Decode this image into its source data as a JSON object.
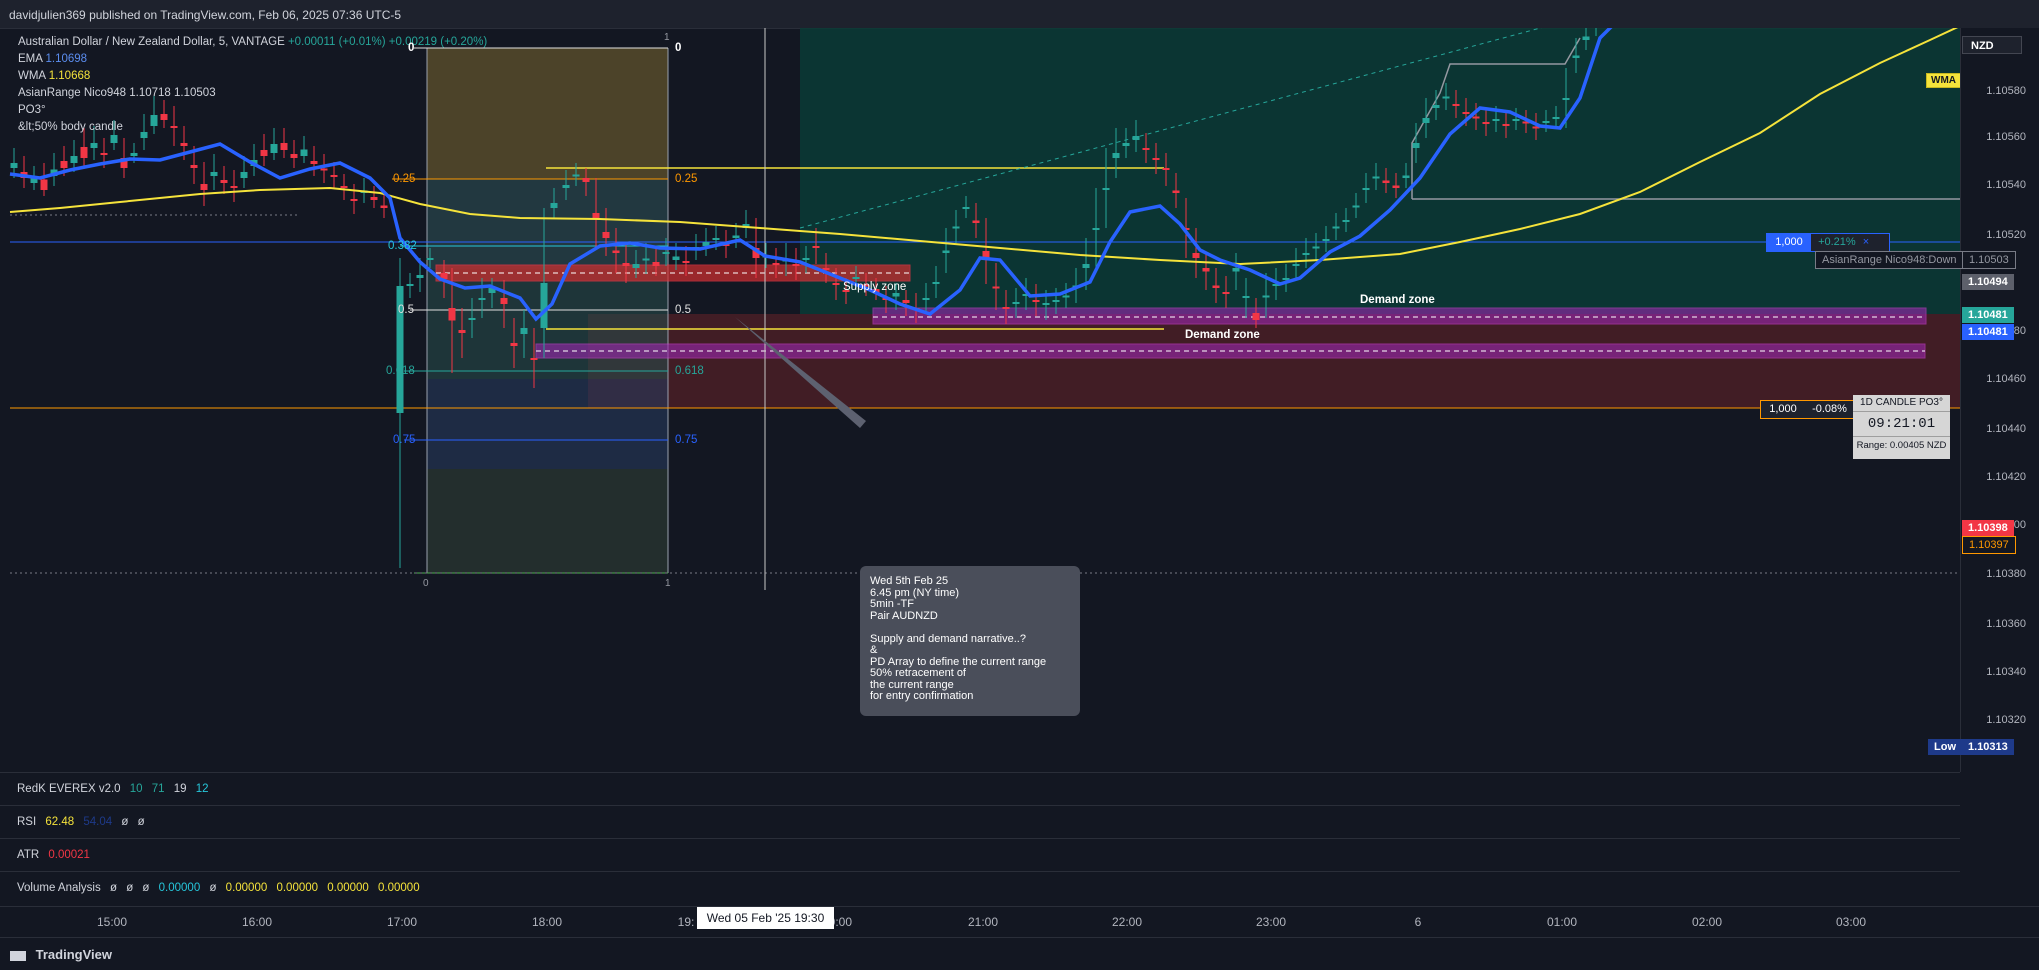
{
  "header": {
    "published": "davidjulien369 published on TradingView.com, Feb 06, 2025 07:36 UTC-5"
  },
  "symbol": {
    "title": "Australian Dollar / New Zealand Dollar, 5, VANTAGE",
    "change": "+0.00011 (+0.01%)",
    "change2": "+0.00219 (+0.20%)"
  },
  "indicators": {
    "ema_label": "EMA",
    "ema_value": "1.10698",
    "wma_label": "WMA",
    "wma_value": "1.10668",
    "asian_label": "AsianRange Nico948",
    "asian_v1": "1.10718",
    "asian_v2": "1.10503",
    "po3": "PO3°",
    "body_candle": "&lt;50% body candle"
  },
  "price_scale": {
    "currency": "NZD",
    "ticks": [
      "1.10580",
      "1.10560",
      "1.10540",
      "1.10520",
      "1.10500",
      "1.10480",
      "1.10460",
      "1.10440",
      "1.10420",
      "1.10400",
      "1.10380",
      "1.10360",
      "1.10340",
      "1.10320"
    ],
    "labels": {
      "asian_down": "AsianRange Nico948:Down",
      "asian_price": "1.10503",
      "current_grey": "1.10494",
      "green1": "1.10481",
      "blue1": "1.10481",
      "red1": "1.10398",
      "orange1": "1.10397",
      "low_label": "Low",
      "low_value": "1.10313"
    },
    "wma_tag": "WMA"
  },
  "positions": {
    "long_qty": "1,000",
    "long_pct": "+0.21%",
    "short_qty": "1,000",
    "short_pct": "-0.08%",
    "close_icon": "×"
  },
  "fib": {
    "top0": "0",
    "top1": "1",
    "l025": "0.25",
    "l05": "0.5",
    "l0618": "0.618",
    "l075": "0.75",
    "left025": "0.25",
    "left038": "0.382",
    "left05": "0.5",
    "left0618": "0.618",
    "left075": "0.75",
    "bottom0": "0",
    "bottom1": "1"
  },
  "zones": {
    "supply": "Supply zone",
    "demand1": "Demand zone",
    "demand2": "Demand zone"
  },
  "clock": {
    "title": "1D CANDLE PO3°",
    "time": "09:21:01",
    "range": "Range: 0.00405 NZD"
  },
  "annotation": {
    "text": "Wed 5th Feb 25\n6.45 pm (NY time)\n5min -TF\nPair AUDNZD\n\nSupply and demand narrative..?\n&\nPD Array to define the current range\n50% retracement of\nthe current range\nfor entry confirmation"
  },
  "panes": {
    "redk": {
      "name": "RedK EVEREX v2.0",
      "v1": "10",
      "v2": "71",
      "v3": "19",
      "v4": "12"
    },
    "rsi": {
      "name": "RSI",
      "v1": "62.48",
      "v2": "54.04",
      "v3": "ø",
      "v4": "ø"
    },
    "atr": {
      "name": "ATR",
      "v1": "0.00021"
    },
    "volume": {
      "name": "Volume Analysis",
      "v1": "ø",
      "v2": "ø",
      "v3": "ø",
      "v4": "0.00000",
      "v5": "ø",
      "v6": "0.00000",
      "v7": "0.00000",
      "v8": "0.00000",
      "v9": "0.00000"
    }
  },
  "time_axis": {
    "ticks": [
      "15:00",
      "16:00",
      "17:00",
      "18:00",
      "19:",
      "20:00",
      "21:00",
      "22:00",
      "23:00",
      "6",
      "01:00",
      "02:00",
      "03:00"
    ],
    "crosshair": "Wed 05 Feb '25   19:30"
  },
  "footer": {
    "logo": "TradingView"
  },
  "colors": {
    "background": "#131722",
    "bull": "#26a69a",
    "bear": "#f23645",
    "ema": "#2962ff",
    "wma": "#f5e33b",
    "zone": "#9c27b0",
    "grid": "#2a2e39"
  }
}
